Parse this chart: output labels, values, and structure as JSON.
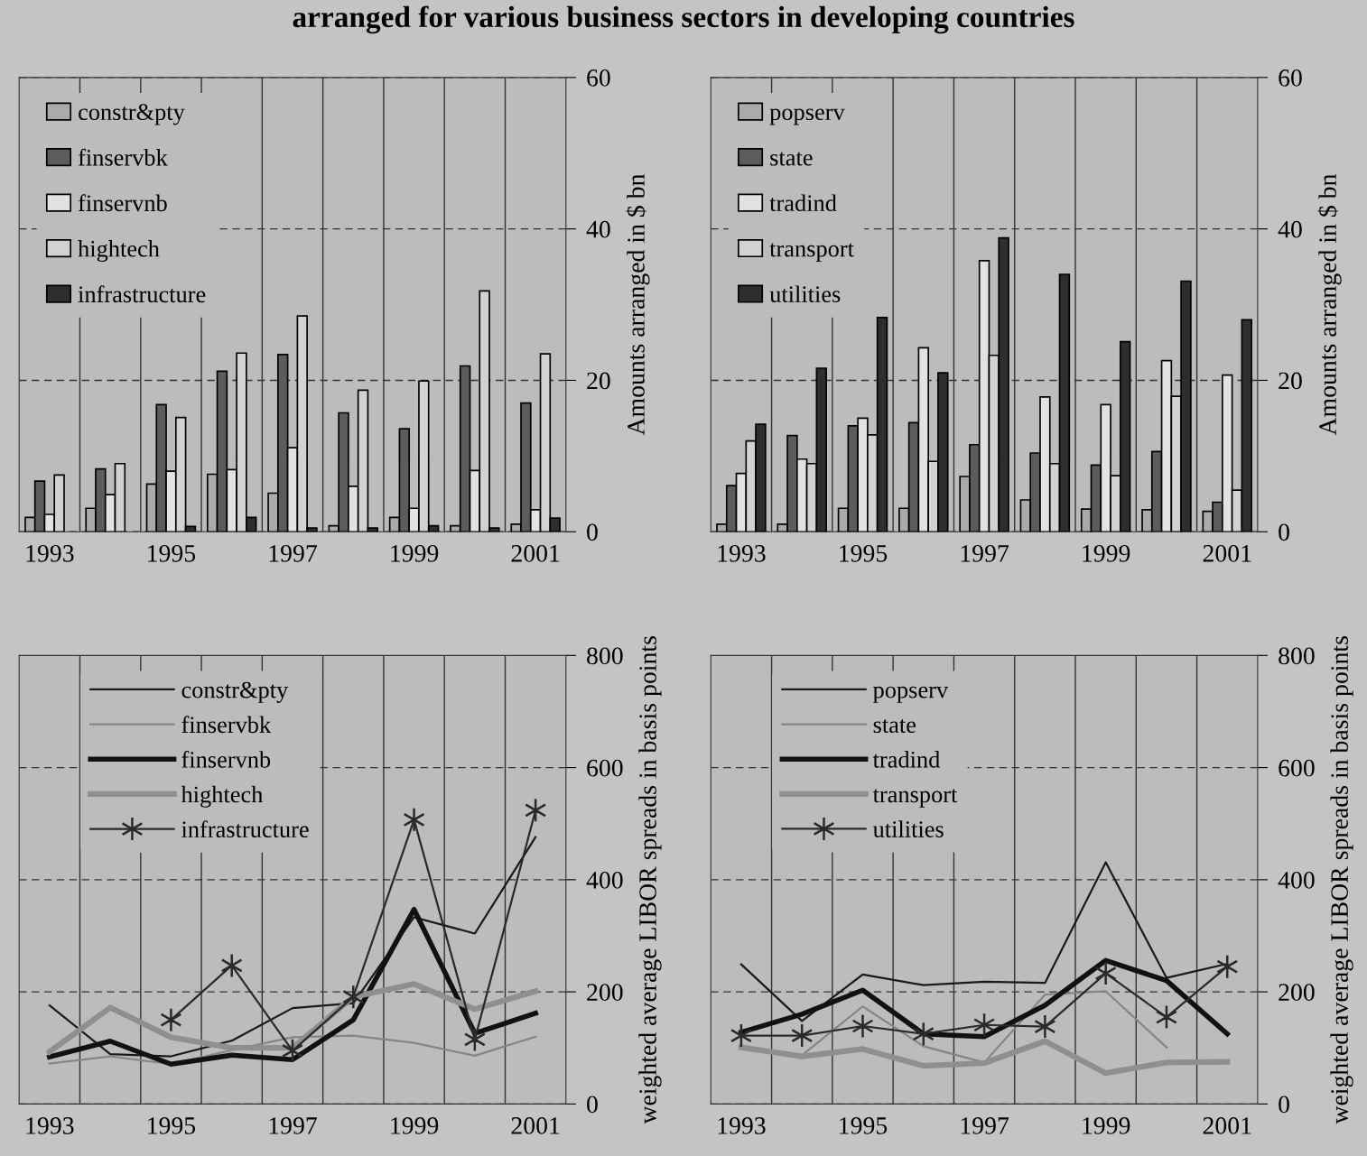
{
  "chart_data": [
    {
      "type": "bar",
      "title": "arranged for various business sectors in developing countries",
      "ylabel": "Amounts arranged in $ bn",
      "categories": [
        "1993",
        null,
        "1995",
        null,
        "1997",
        null,
        "1999",
        null,
        "2001"
      ],
      "ylim": [
        0,
        60
      ],
      "yticks": [
        0,
        20,
        40,
        60
      ],
      "grid": true,
      "legend": "top left",
      "series": [
        {
          "name": "constr&pty",
          "color": "#aaaaaa",
          "values": [
            1.9,
            3.1,
            6.3,
            7.6,
            5.1,
            0.8,
            1.9,
            0.8,
            1.0
          ]
        },
        {
          "name": "finservbk",
          "color": "#5c5c5c",
          "values": [
            6.7,
            8.3,
            16.8,
            21.2,
            23.4,
            15.7,
            13.6,
            21.9,
            17.0
          ]
        },
        {
          "name": "finservnb",
          "color": "#e2e2e2",
          "values": [
            2.3,
            4.9,
            8.0,
            8.2,
            11.1,
            6.0,
            3.1,
            8.1,
            2.9
          ]
        },
        {
          "name": "hightech",
          "color": "#d2d2d2",
          "values": [
            7.5,
            9.0,
            15.1,
            23.6,
            28.5,
            18.7,
            19.9,
            31.8,
            23.5
          ]
        },
        {
          "name": "infrastructure",
          "color": "#2e2e2e",
          "values": [
            null,
            null,
            0.7,
            1.9,
            0.5,
            0.5,
            0.8,
            0.5,
            1.8
          ]
        }
      ]
    },
    {
      "type": "bar",
      "ylabel": "Amounts arranged in $ bn",
      "categories": [
        "1993",
        null,
        "1995",
        null,
        "1997",
        null,
        "1999",
        null,
        "2001"
      ],
      "ylim": [
        0,
        60
      ],
      "yticks": [
        0,
        20,
        40,
        60
      ],
      "grid": true,
      "legend": "top left",
      "series": [
        {
          "name": "popserv",
          "color": "#aaaaaa",
          "values": [
            1.0,
            1.0,
            3.1,
            3.1,
            7.3,
            4.2,
            3.0,
            2.9,
            2.7
          ]
        },
        {
          "name": "state",
          "color": "#5c5c5c",
          "values": [
            6.1,
            12.7,
            14.0,
            14.4,
            11.5,
            10.4,
            8.8,
            10.6,
            3.9
          ]
        },
        {
          "name": "tradind",
          "color": "#e2e2e2",
          "values": [
            7.7,
            9.6,
            15.0,
            24.3,
            35.8,
            17.8,
            16.8,
            22.6,
            20.7
          ]
        },
        {
          "name": "transport",
          "color": "#d2d2d2",
          "values": [
            12.0,
            9.0,
            12.8,
            9.3,
            23.3,
            9.0,
            7.4,
            17.9,
            5.5
          ]
        },
        {
          "name": "utilities",
          "color": "#2e2e2e",
          "values": [
            14.2,
            21.6,
            28.3,
            21.0,
            38.8,
            34.0,
            25.1,
            33.1,
            28.0
          ]
        }
      ]
    },
    {
      "type": "line",
      "ylabel": "weighted average LIBOR spreads in basis points",
      "categories": [
        "1993",
        null,
        "1995",
        null,
        "1997",
        null,
        "1999",
        null,
        "2001"
      ],
      "ylim": [
        0,
        800
      ],
      "yticks": [
        0,
        200,
        400,
        600,
        800
      ],
      "grid": true,
      "legend": "top left",
      "series": [
        {
          "name": "constr&pty",
          "color": "#1a1a1a",
          "values": [
            176,
            89,
            85,
            113,
            171,
            180,
            333,
            304,
            476
          ]
        },
        {
          "name": "finservbk",
          "color": "#858585",
          "values": [
            72,
            85,
            71,
            96,
            119,
            122,
            109,
            86,
            120
          ]
        },
        {
          "name": "finservnb",
          "color": "#111111",
          "values": [
            84,
            112,
            71,
            87,
            79,
            150,
            347,
            126,
            162
          ]
        },
        {
          "name": "hightech",
          "color": "#8f8f8f",
          "values": [
            93,
            172,
            119,
            100,
            100,
            191,
            214,
            169,
            201
          ]
        },
        {
          "name": "infrastructure",
          "color": "#2a2a2a",
          "marker": "cross",
          "values": [
            null,
            null,
            150,
            247,
            95,
            191,
            507,
            115,
            524
          ]
        }
      ]
    },
    {
      "type": "line",
      "ylabel": "weighted average LIBOR spreads in basis points",
      "categories": [
        "1993",
        null,
        "1995",
        null,
        "1997",
        null,
        "1999",
        null,
        "2001"
      ],
      "ylim": [
        0,
        800
      ],
      "yticks": [
        0,
        200,
        400,
        600,
        800
      ],
      "grid": true,
      "legend": "top left",
      "series": [
        {
          "name": "popserv",
          "color": "#1a1a1a",
          "values": [
            249,
            148,
            231,
            212,
            218,
            216,
            431,
            225,
            250
          ]
        },
        {
          "name": "state",
          "color": "#858585",
          "values": [
            103,
            87,
            174,
            103,
            74,
            195,
            201,
            101,
            null
          ]
        },
        {
          "name": "tradind",
          "color": "#111111",
          "values": [
            128,
            160,
            203,
            125,
            120,
            176,
            256,
            220,
            125
          ]
        },
        {
          "name": "transport",
          "color": "#8f8f8f",
          "values": [
            101,
            85,
            98,
            68,
            73,
            112,
            55,
            74,
            75
          ]
        },
        {
          "name": "utilities",
          "color": "#2a2a2a",
          "marker": "cross",
          "values": [
            122,
            122,
            139,
            125,
            141,
            138,
            233,
            155,
            245
          ]
        }
      ]
    }
  ]
}
